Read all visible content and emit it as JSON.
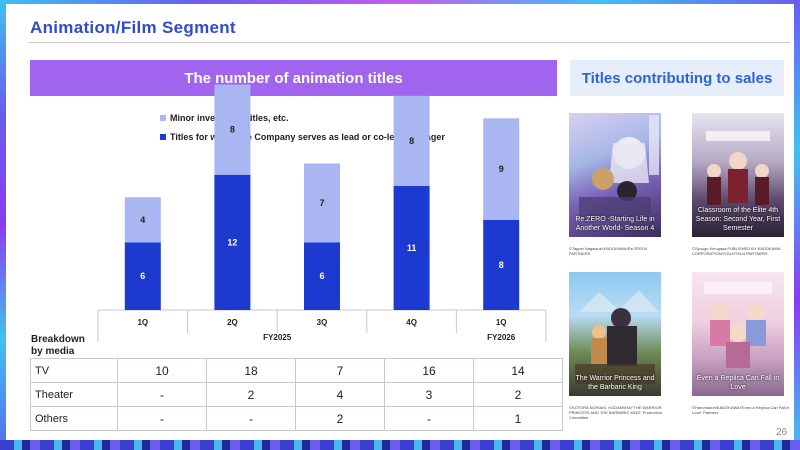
{
  "header": {
    "title": "Animation/Film Segment"
  },
  "chart_banner": "The number of animation titles",
  "titles_banner": "Titles contributing to sales",
  "chart_data": {
    "type": "bar",
    "stacked": true,
    "categories": [
      "1Q",
      "2Q",
      "3Q",
      "4Q",
      "1Q"
    ],
    "groups": [
      {
        "label": "FY2025",
        "categories": [
          "1Q",
          "2Q",
          "3Q",
          "4Q"
        ]
      },
      {
        "label": "FY2026",
        "categories": [
          "1Q"
        ]
      }
    ],
    "series": [
      {
        "name": "Titles for which the Company serves as lead or co-lead manager",
        "values": [
          6,
          12,
          6,
          11,
          8
        ],
        "color": "#1c3ad0"
      },
      {
        "name": "Minor investment titles, etc.",
        "values": [
          4,
          8,
          7,
          8,
          9
        ],
        "color": "#aab6f2"
      }
    ],
    "ylim": [
      0,
      22
    ],
    "grid": false,
    "legend": "top-left"
  },
  "breakdown": {
    "label_line1": "Breakdown",
    "label_line2": "by media",
    "rows": [
      {
        "label": "TV",
        "values": [
          "10",
          "18",
          "7",
          "16",
          "14"
        ]
      },
      {
        "label": "Theater",
        "values": [
          "-",
          "2",
          "4",
          "3",
          "2"
        ]
      },
      {
        "label": "Others",
        "values": [
          "-",
          "-",
          "2",
          "-",
          "1"
        ]
      }
    ]
  },
  "posters": [
    {
      "caption": "Re:ZERO -Starting Life in Another World- Season 4",
      "credit": "©Tappei Nagatsuki,KADOKAWA/Re:ZERO4 PARTNERS"
    },
    {
      "caption": "Classroom of the Elite 4th Season: Second Year, First Semester",
      "credit": "©Syougo Kinugasa,PUBLISHED BY KADOKAWA CORPORATION/YOUZITSU4 PARTNERS"
    },
    {
      "caption": "The Warrior Princess and the Barbaric King",
      "credit": "©KOTORA NORIAKI, KODANSHA/\"THE WARRIOR PRINCESS AND THE BARBARIC KING\" Production Committee"
    },
    {
      "caption": "Even a Replica Can Fall in Love",
      "credit": "©Harumadori/KADOKAWA/\"Even a Replica Can Fall in Love\" Partners"
    }
  ],
  "page_number": "26"
}
